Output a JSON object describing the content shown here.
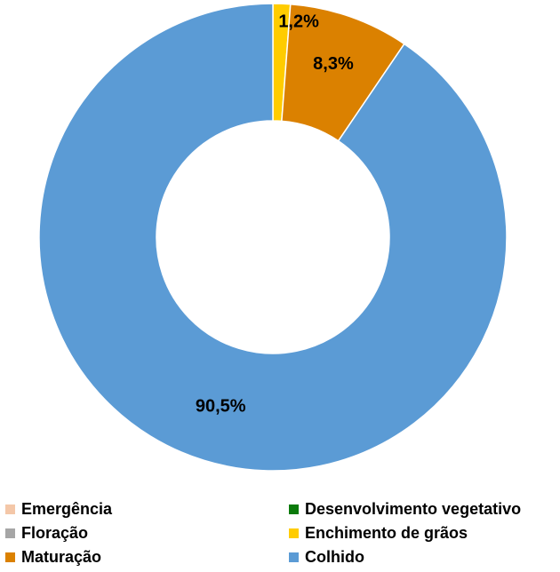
{
  "chart_data": {
    "type": "pie",
    "categories": [
      "Emergência",
      "Desenvolvimento vegetativo",
      "Floração",
      "Enchimento de grãos",
      "Maturação",
      "Colhido"
    ],
    "values": [
      0,
      0,
      0,
      1.2,
      8.3,
      90.5
    ],
    "value_labels": [
      "",
      "",
      "",
      "1,2%",
      "8,3%",
      "90,5%"
    ],
    "colors": [
      "#F4C7A8",
      "#0B7A0B",
      "#A6A6A6",
      "#FFCC00",
      "#DB8100",
      "#5B9BD5"
    ],
    "legend_position": "bottom",
    "title": ""
  }
}
